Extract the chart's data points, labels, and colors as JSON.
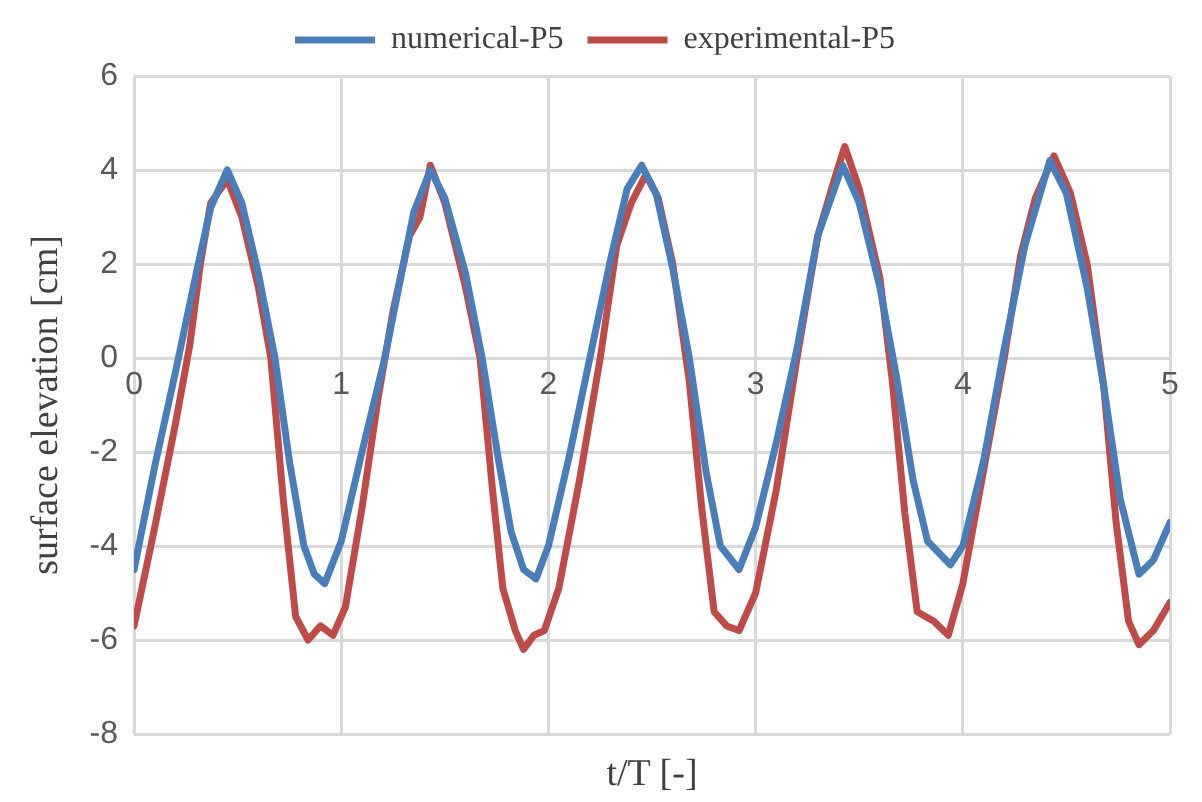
{
  "chart_data": {
    "type": "line",
    "xlabel": "t/T [-]",
    "ylabel": "surface elevation [cm]",
    "xlim": [
      0,
      5
    ],
    "xticks": [
      0,
      1,
      2,
      3,
      4,
      5
    ],
    "ylim": [
      -8,
      6
    ],
    "yticks": [
      -8,
      -6,
      -4,
      -2,
      0,
      2,
      4,
      6
    ],
    "grid": true,
    "legend": "top",
    "marker": "none",
    "line_style": "solid",
    "series": [
      {
        "name": "numerical-P5",
        "color": "#4a7ebb",
        "x": [
          0,
          0.1,
          0.2,
          0.3,
          0.37,
          0.45,
          0.52,
          0.6,
          0.68,
          0.75,
          0.82,
          0.87,
          0.92,
          1.0,
          1.1,
          1.21,
          1.3,
          1.35,
          1.43,
          1.5,
          1.6,
          1.68,
          1.76,
          1.82,
          1.88,
          1.94,
          2.0,
          2.1,
          2.2,
          2.3,
          2.38,
          2.45,
          2.52,
          2.6,
          2.68,
          2.76,
          2.83,
          2.92,
          3.0,
          3.1,
          3.2,
          3.3,
          3.42,
          3.5,
          3.6,
          3.68,
          3.76,
          3.83,
          3.94,
          4.0,
          4.1,
          4.2,
          4.3,
          4.42,
          4.5,
          4.6,
          4.68,
          4.76,
          4.85,
          4.92,
          5.0
        ],
        "values": [
          -4.5,
          -2.3,
          -0.3,
          1.8,
          3.2,
          4.0,
          3.3,
          1.8,
          0,
          -2.2,
          -4.0,
          -4.6,
          -4.8,
          -3.9,
          -2.0,
          0,
          2.0,
          3.1,
          4.0,
          3.4,
          1.8,
          0,
          -2.2,
          -3.7,
          -4.5,
          -4.7,
          -4.0,
          -2.1,
          0,
          2.1,
          3.6,
          4.1,
          3.5,
          1.9,
          0,
          -2.4,
          -4.0,
          -4.5,
          -3.6,
          -1.8,
          0.2,
          2.6,
          4.1,
          3.3,
          1.5,
          -0.4,
          -2.6,
          -3.9,
          -4.4,
          -4.0,
          -2.2,
          0.2,
          2.4,
          4.2,
          3.5,
          1.5,
          -0.6,
          -3.0,
          -4.6,
          -4.3,
          -3.5
        ]
      },
      {
        "name": "experimental-P5",
        "color": "#be4b48",
        "x": [
          0,
          0.1,
          0.2,
          0.27,
          0.32,
          0.37,
          0.45,
          0.52,
          0.6,
          0.66,
          0.72,
          0.78,
          0.84,
          0.9,
          0.96,
          1.02,
          1.1,
          1.18,
          1.25,
          1.33,
          1.38,
          1.43,
          1.5,
          1.6,
          1.67,
          1.73,
          1.78,
          1.84,
          1.88,
          1.93,
          1.98,
          2.05,
          2.15,
          2.25,
          2.33,
          2.4,
          2.47,
          2.53,
          2.6,
          2.68,
          2.74,
          2.8,
          2.86,
          2.92,
          3.0,
          3.1,
          3.2,
          3.3,
          3.38,
          3.43,
          3.5,
          3.6,
          3.66,
          3.72,
          3.78,
          3.86,
          3.93,
          4.0,
          4.1,
          4.2,
          4.28,
          4.35,
          4.44,
          4.52,
          4.6,
          4.68,
          4.74,
          4.8,
          4.85,
          4.92,
          5.0
        ],
        "values": [
          -5.7,
          -3.6,
          -1.4,
          0.3,
          2.0,
          3.3,
          3.8,
          3.0,
          1.5,
          0,
          -3.0,
          -5.5,
          -6.0,
          -5.7,
          -5.9,
          -5.3,
          -3.2,
          -0.8,
          1.0,
          2.6,
          3.0,
          4.1,
          3.3,
          1.5,
          0,
          -2.8,
          -4.9,
          -5.8,
          -6.2,
          -5.9,
          -5.8,
          -4.9,
          -2.6,
          0,
          2.4,
          3.3,
          3.9,
          3.4,
          2.0,
          -0.5,
          -3.2,
          -5.4,
          -5.7,
          -5.8,
          -5.0,
          -2.8,
          0,
          2.6,
          3.8,
          4.5,
          3.6,
          1.7,
          -0.5,
          -3.3,
          -5.4,
          -5.6,
          -5.9,
          -4.8,
          -2.4,
          0,
          2.2,
          3.4,
          4.3,
          3.5,
          2.0,
          -0.6,
          -3.5,
          -5.6,
          -6.1,
          -5.8,
          -5.2
        ]
      }
    ]
  }
}
